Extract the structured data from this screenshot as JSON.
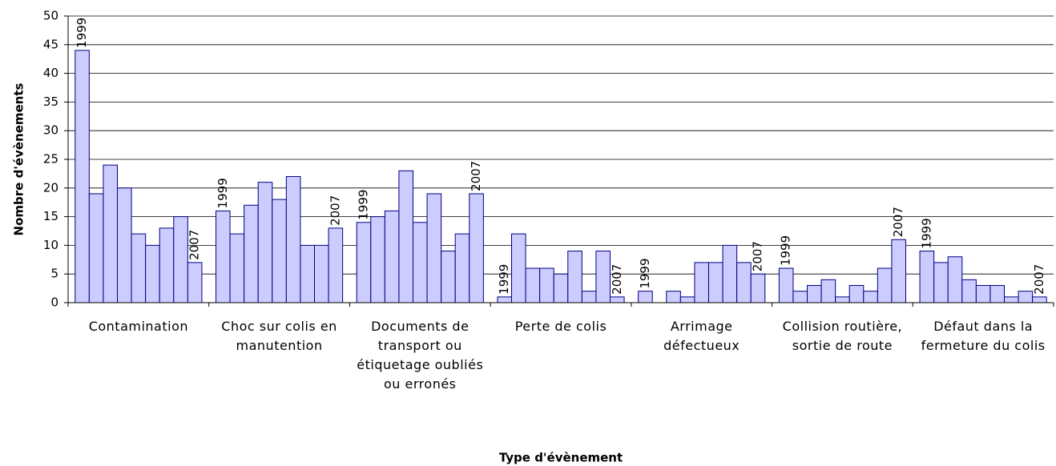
{
  "chart_data": {
    "type": "bar",
    "x_label": "Type d'évènement",
    "y_label": "Nombre d'évènements",
    "categories": [
      "Contamination",
      "Choc sur colis en manutention",
      "Documents de transport ou étiquetage oubliés ou erronés",
      "Perte de colis",
      "Arrimage défectueux",
      "Collision routière, sortie de route",
      "Défaut dans la fermeture du colis"
    ],
    "series": [
      {
        "name": "1999",
        "values": [
          44,
          16,
          14,
          1,
          2,
          6,
          9
        ]
      },
      {
        "values": [
          19,
          12,
          15,
          12,
          0,
          2,
          7
        ]
      },
      {
        "values": [
          24,
          17,
          16,
          6,
          2,
          3,
          8
        ]
      },
      {
        "values": [
          20,
          21,
          23,
          6,
          1,
          4,
          4
        ]
      },
      {
        "values": [
          12,
          18,
          14,
          5,
          7,
          1,
          3
        ]
      },
      {
        "values": [
          10,
          22,
          19,
          9,
          7,
          3,
          3
        ]
      },
      {
        "values": [
          13,
          10,
          9,
          2,
          10,
          2,
          1
        ]
      },
      {
        "values": [
          15,
          10,
          12,
          9,
          7,
          6,
          2
        ]
      },
      {
        "name": "2007",
        "values": [
          7,
          13,
          19,
          1,
          5,
          11,
          1
        ]
      }
    ],
    "color": "#ccccff",
    "edge_color": "#000080",
    "ylim": [
      0,
      50
    ],
    "yticks": [
      0,
      5,
      10,
      15,
      20,
      25,
      30,
      35,
      40,
      45,
      50
    ],
    "grid": true
  }
}
